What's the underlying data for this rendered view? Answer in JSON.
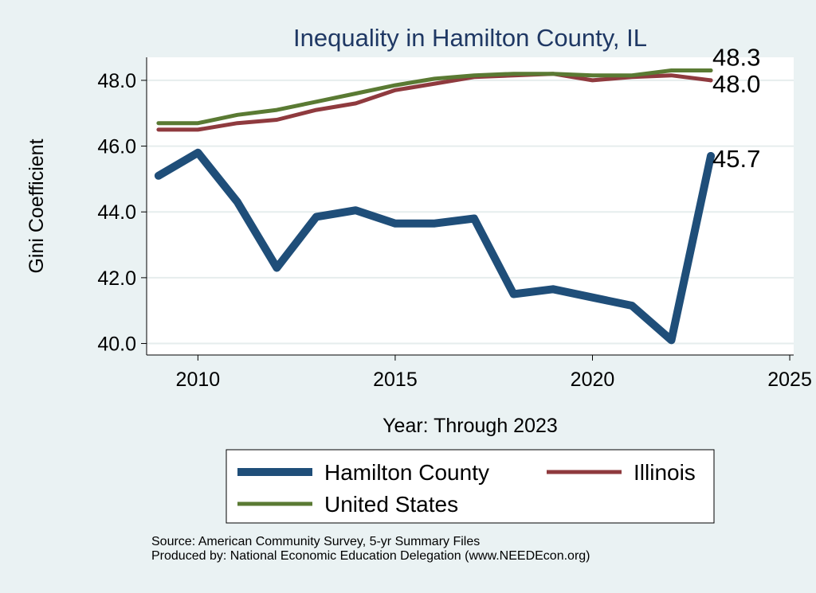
{
  "chart_data": {
    "type": "line",
    "title": "Inequality in Hamilton County, IL",
    "xlabel": "Year: Through 2023",
    "ylabel": "Gini Coefficient",
    "xlim": [
      2008.7,
      2025.1
    ],
    "ylim": [
      39.65,
      48.7
    ],
    "xticks": [
      2010,
      2015,
      2020,
      2025
    ],
    "yticks": [
      40.0,
      42.0,
      44.0,
      46.0,
      48.0
    ],
    "grid": "horizontal",
    "legend_position": "bottom",
    "x": [
      2009,
      2010,
      2011,
      2012,
      2013,
      2014,
      2015,
      2016,
      2017,
      2018,
      2019,
      2020,
      2021,
      2022,
      2023
    ],
    "series": [
      {
        "name": "Hamilton County",
        "color": "#1f4e79",
        "values": [
          45.1,
          45.8,
          44.3,
          42.3,
          43.85,
          44.05,
          43.65,
          43.65,
          43.8,
          41.5,
          41.65,
          41.4,
          41.15,
          40.1,
          45.7
        ],
        "end_label": "45.7"
      },
      {
        "name": "Illinois",
        "color": "#8f3a3e",
        "values": [
          46.5,
          46.5,
          46.7,
          46.8,
          47.1,
          47.3,
          47.7,
          47.9,
          48.1,
          48.15,
          48.2,
          48.0,
          48.1,
          48.15,
          48.0
        ],
        "end_label": "48.0"
      },
      {
        "name": "United States",
        "color": "#5a7a33",
        "values": [
          46.7,
          46.7,
          46.95,
          47.1,
          47.35,
          47.6,
          47.85,
          48.05,
          48.15,
          48.2,
          48.2,
          48.15,
          48.15,
          48.3,
          48.3
        ],
        "end_label": "48.3"
      }
    ]
  },
  "colors": {
    "background": "#eaf2f3",
    "plot_background": "#ffffff",
    "grid": "#e6eded",
    "title": "#1f3864"
  },
  "source_note": {
    "line1": "Source: American Community Survey, 5-yr Summary Files",
    "line2": "Produced by: National Economic Education Delegation (www.NEEDEcon.org)"
  }
}
